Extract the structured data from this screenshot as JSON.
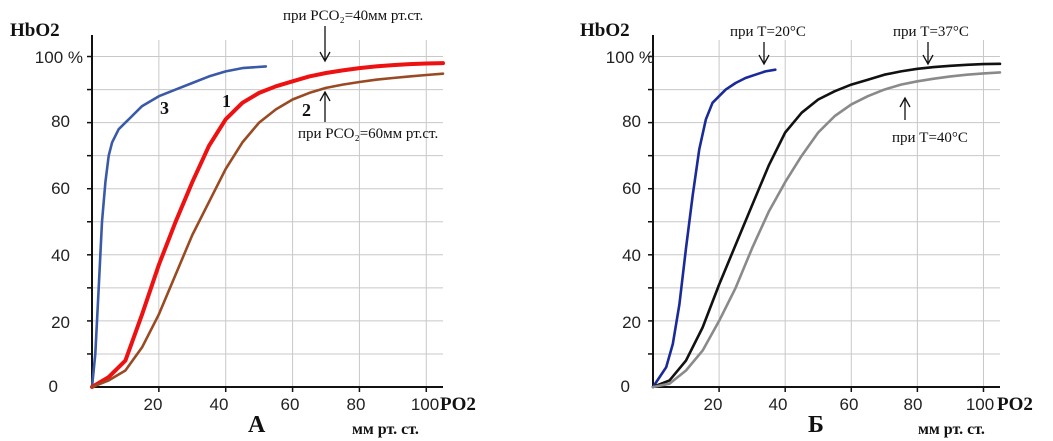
{
  "chart_data": [
    {
      "type": "line",
      "panel_label": "А",
      "ylabel": "HbO2",
      "xlabel": "PO2",
      "xunit": "мм рт. ст.",
      "xlim": [
        0,
        105
      ],
      "ylim": [
        0,
        105
      ],
      "x_ticks": [
        "20",
        "40",
        "60",
        "80",
        "100"
      ],
      "y_ticks": [
        "0",
        "20",
        "40",
        "60",
        "80",
        "100 %"
      ],
      "grid": true,
      "series": [
        {
          "name": "3",
          "color": "#3a5aa8",
          "x": [
            0,
            1,
            2,
            3,
            4,
            5,
            6,
            8,
            10,
            12,
            15,
            20,
            25,
            30,
            35,
            40,
            45,
            52
          ],
          "y": [
            0,
            10,
            30,
            50,
            62,
            70,
            74,
            78,
            80,
            82,
            85,
            88,
            90,
            92,
            94,
            95.5,
            96.5,
            97
          ]
        },
        {
          "name": "1",
          "color": "#ee1111",
          "x": [
            0,
            5,
            10,
            15,
            20,
            25,
            30,
            35,
            40,
            45,
            50,
            55,
            60,
            65,
            70,
            75,
            80,
            85,
            90,
            95,
            100,
            105
          ],
          "y": [
            0,
            3,
            8,
            22,
            37,
            50,
            62,
            73,
            81,
            86,
            89,
            91,
            92.5,
            94,
            95,
            95.8,
            96.5,
            97,
            97.4,
            97.7,
            97.9,
            98
          ]
        },
        {
          "name": "2",
          "color": "#9a4a22",
          "x": [
            0,
            5,
            10,
            15,
            20,
            25,
            30,
            35,
            40,
            45,
            50,
            55,
            60,
            65,
            70,
            75,
            80,
            85,
            90,
            95,
            100,
            105
          ],
          "y": [
            0,
            2,
            5,
            12,
            22,
            34,
            46,
            56,
            66,
            74,
            80,
            84,
            87,
            89,
            90.5,
            91.5,
            92.3,
            93,
            93.5,
            94,
            94.4,
            94.8
          ]
        }
      ],
      "annotations": [
        {
          "text": "при PCO₂=40мм рт.ст.",
          "points_to": "1",
          "arrow": "down"
        },
        {
          "text": "при PCO₂=60мм рт.ст.",
          "points_to": "2",
          "arrow": "up"
        }
      ]
    },
    {
      "type": "line",
      "panel_label": "Б",
      "ylabel": "HbO2",
      "xlabel": "PO2",
      "xunit": "мм рт. ст.",
      "xlim": [
        0,
        105
      ],
      "ylim": [
        0,
        105
      ],
      "x_ticks": [
        "20",
        "40",
        "60",
        "80",
        "100"
      ],
      "y_ticks": [
        "0",
        "20",
        "40",
        "60",
        "80",
        "100 %"
      ],
      "grid": true,
      "series": [
        {
          "name": "при T=20°C",
          "color": "#1a2a99",
          "x": [
            0,
            2,
            4,
            6,
            8,
            10,
            12,
            14,
            16,
            18,
            20,
            22,
            25,
            28,
            31,
            34,
            37
          ],
          "y": [
            0,
            3,
            6,
            13,
            25,
            42,
            58,
            72,
            81,
            86,
            88,
            90,
            92,
            93.5,
            94.5,
            95.5,
            96
          ]
        },
        {
          "name": "при T=37°C",
          "color": "#111111",
          "x": [
            0,
            5,
            10,
            15,
            20,
            25,
            30,
            35,
            40,
            45,
            50,
            55,
            60,
            65,
            70,
            75,
            80,
            85,
            90,
            95,
            100,
            105
          ],
          "y": [
            0,
            2,
            8,
            18,
            31,
            43,
            55,
            67,
            77,
            83,
            87,
            89.5,
            91.5,
            93,
            94.5,
            95.5,
            96.3,
            96.8,
            97.2,
            97.5,
            97.7,
            97.8
          ]
        },
        {
          "name": "при T=40°C",
          "color": "#8a8a8a",
          "x": [
            0,
            5,
            10,
            15,
            20,
            25,
            30,
            35,
            40,
            45,
            50,
            55,
            60,
            65,
            70,
            75,
            80,
            85,
            90,
            95,
            100,
            105
          ],
          "y": [
            0,
            1,
            5,
            11,
            20,
            30,
            42,
            53,
            62,
            70,
            77,
            82,
            85.5,
            88,
            90,
            91.5,
            92.5,
            93.3,
            94,
            94.5,
            94.9,
            95.2
          ]
        }
      ],
      "annotations": [
        {
          "text": "при T=20°C",
          "points_to": "при T=20°C",
          "arrow": "down"
        },
        {
          "text": "при T=37°C",
          "points_to": "при T=37°C",
          "arrow": "down"
        },
        {
          "text": "при T=40°C",
          "points_to": "при T=40°C",
          "arrow": "up"
        }
      ]
    }
  ]
}
